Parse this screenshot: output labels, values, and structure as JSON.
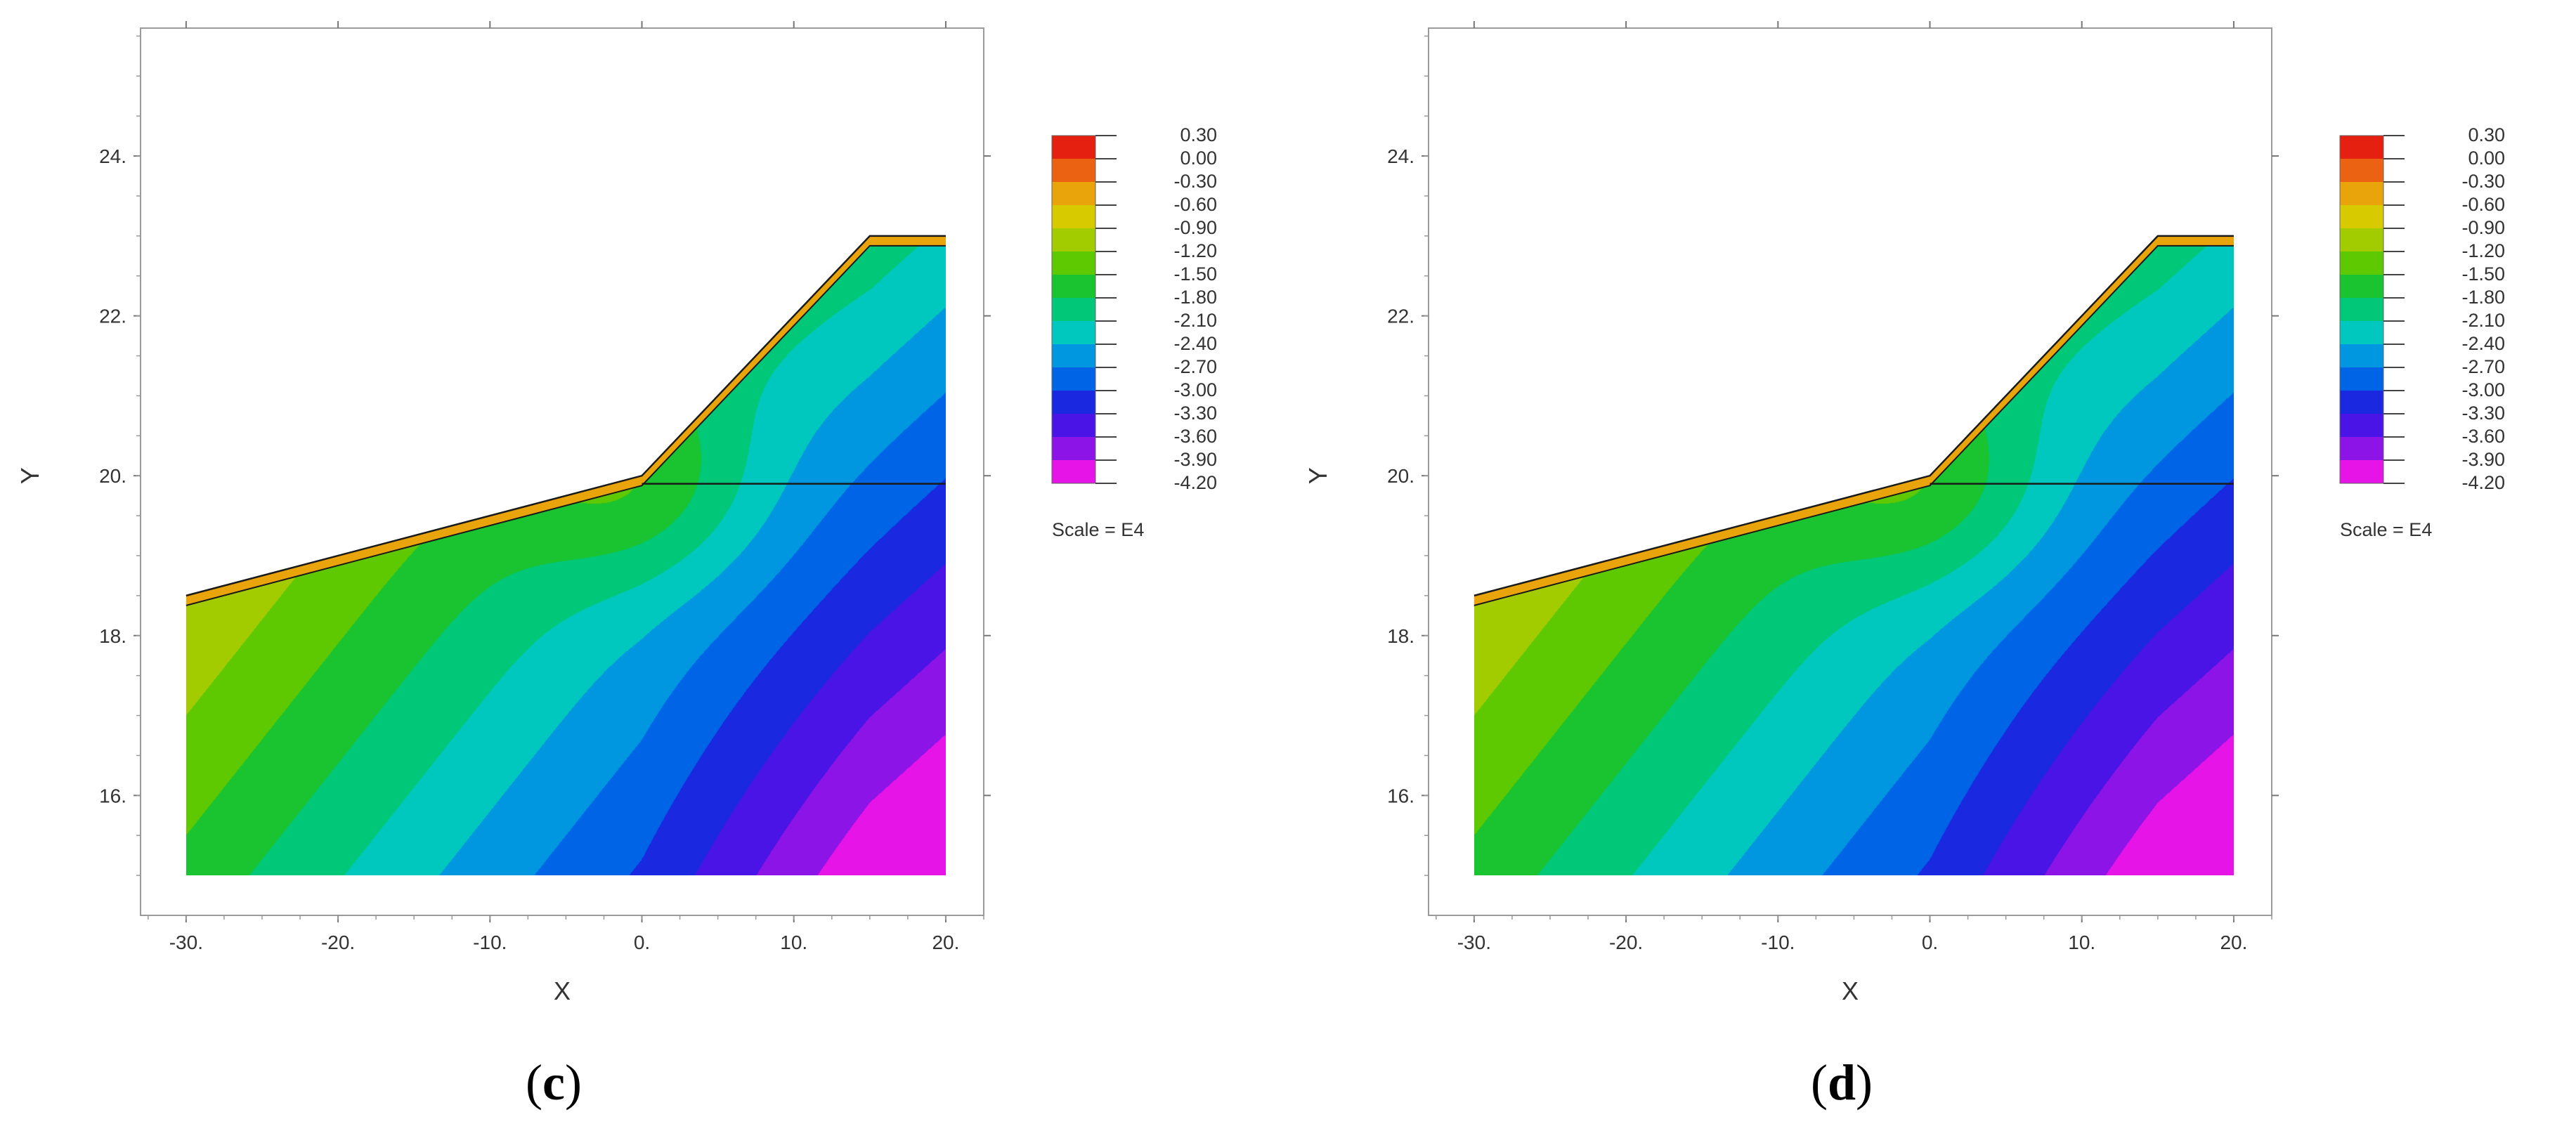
{
  "chart_data": [
    {
      "type": "heatmap",
      "panel_label": "(c)",
      "label_letter": "c",
      "xlabel": "X",
      "ylabel": "Y",
      "xlim": [
        -33,
        22.5
      ],
      "ylim": [
        14.5,
        25.6
      ],
      "xticks": [
        "-30.",
        "-20.",
        "-10.",
        "0.",
        "10.",
        "20."
      ],
      "yticks": [
        "16.",
        "18.",
        "20.",
        "22.",
        "24."
      ],
      "legend": {
        "levels": [
          "0.30",
          "0.00",
          "-0.30",
          "-0.60",
          "-0.90",
          "-1.20",
          "-1.50",
          "-1.80",
          "-2.10",
          "-2.40",
          "-2.70",
          "-3.00",
          "-3.30",
          "-3.60",
          "-3.90",
          "-4.20"
        ],
        "colors": [
          "#e62010",
          "#eb6212",
          "#e8a40a",
          "#d8ca00",
          "#a3cc00",
          "#5ec800",
          "#1ac330",
          "#00c878",
          "#00c8be",
          "#0096e0",
          "#0064e6",
          "#1a28e0",
          "#4a14e6",
          "#8c14e6",
          "#e614e6"
        ],
        "scale_text": "Scale = E4"
      },
      "profile": {
        "surface": [
          [
            -30,
            18.5
          ],
          [
            0,
            20.0
          ],
          [
            15,
            23.0
          ],
          [
            20,
            23.0
          ]
        ],
        "water_table": [
          [
            0,
            19.9
          ],
          [
            20,
            19.9
          ]
        ],
        "bottom": 15.0
      }
    },
    {
      "type": "heatmap",
      "panel_label": "(d)",
      "label_letter": "d",
      "xlabel": "X",
      "ylabel": "Y",
      "xlim": [
        -33,
        22.5
      ],
      "ylim": [
        14.5,
        25.6
      ],
      "xticks": [
        "-30.",
        "-20.",
        "-10.",
        "0.",
        "10.",
        "20."
      ],
      "yticks": [
        "16.",
        "18.",
        "20.",
        "22.",
        "24."
      ],
      "legend": {
        "levels": [
          "0.30",
          "0.00",
          "-0.30",
          "-0.60",
          "-0.90",
          "-1.20",
          "-1.50",
          "-1.80",
          "-2.10",
          "-2.40",
          "-2.70",
          "-3.00",
          "-3.30",
          "-3.60",
          "-3.90",
          "-4.20"
        ],
        "colors": [
          "#e62010",
          "#eb6212",
          "#e8a40a",
          "#d8ca00",
          "#a3cc00",
          "#5ec800",
          "#1ac330",
          "#00c878",
          "#00c8be",
          "#0096e0",
          "#0064e6",
          "#1a28e0",
          "#4a14e6",
          "#8c14e6",
          "#e614e6"
        ],
        "scale_text": "Scale = E4"
      },
      "profile": {
        "surface": [
          [
            -30,
            18.5
          ],
          [
            0,
            20.0
          ],
          [
            15,
            23.0
          ],
          [
            20,
            23.0
          ]
        ],
        "water_table": [
          [
            0,
            19.9
          ],
          [
            20,
            19.9
          ]
        ],
        "bottom": 15.0
      }
    }
  ]
}
